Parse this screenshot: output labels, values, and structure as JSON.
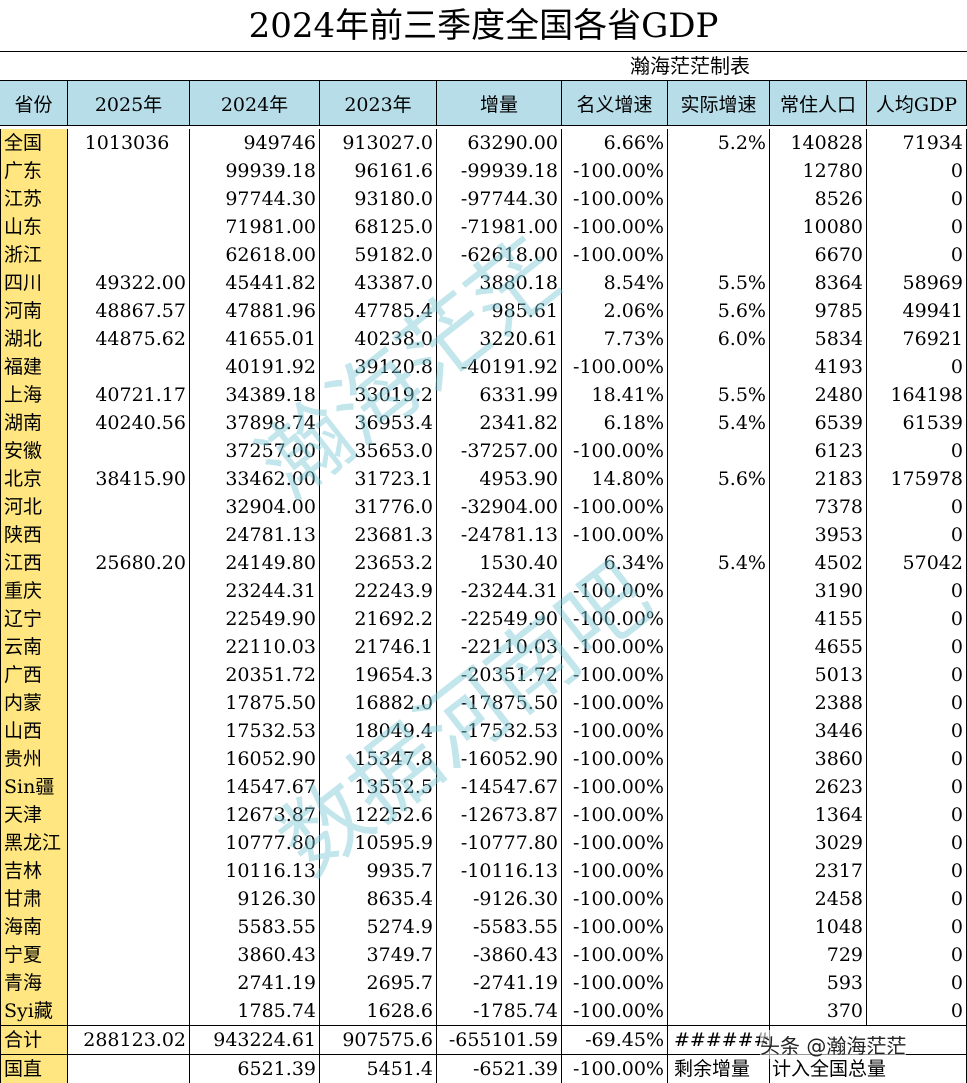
{
  "title": "2024年前三季度全国各省GDP",
  "subtitle": "瀚海茫茫制表",
  "headers": [
    "省份",
    "2025年",
    "2024年",
    "2023年",
    "增量",
    "名义增速",
    "实际增速",
    "常住人口",
    "人均GDP"
  ],
  "rows": [
    [
      "全国",
      "1013036",
      "949746",
      "913027.0",
      "63290.00",
      "6.66%",
      "5.2%",
      "140828",
      "71934"
    ],
    [
      "广东",
      "",
      "99939.18",
      "96161.6",
      "-99939.18",
      "-100.00%",
      "",
      "12780",
      "0"
    ],
    [
      "江苏",
      "",
      "97744.30",
      "93180.0",
      "-97744.30",
      "-100.00%",
      "",
      "8526",
      "0"
    ],
    [
      "山东",
      "",
      "71981.00",
      "68125.0",
      "-71981.00",
      "-100.00%",
      "",
      "10080",
      "0"
    ],
    [
      "浙江",
      "",
      "62618.00",
      "59182.0",
      "-62618.00",
      "-100.00%",
      "",
      "6670",
      "0"
    ],
    [
      "四川",
      "49322.00",
      "45441.82",
      "43387.0",
      "3880.18",
      "8.54%",
      "5.5%",
      "8364",
      "58969"
    ],
    [
      "河南",
      "48867.57",
      "47881.96",
      "47785.4",
      "985.61",
      "2.06%",
      "5.6%",
      "9785",
      "49941"
    ],
    [
      "湖北",
      "44875.62",
      "41655.01",
      "40238.0",
      "3220.61",
      "7.73%",
      "6.0%",
      "5834",
      "76921"
    ],
    [
      "福建",
      "",
      "40191.92",
      "39120.8",
      "-40191.92",
      "-100.00%",
      "",
      "4193",
      "0"
    ],
    [
      "上海",
      "40721.17",
      "34389.18",
      "33019.2",
      "6331.99",
      "18.41%",
      "5.5%",
      "2480",
      "164198"
    ],
    [
      "湖南",
      "40240.56",
      "37898.74",
      "36953.4",
      "2341.82",
      "6.18%",
      "5.4%",
      "6539",
      "61539"
    ],
    [
      "安徽",
      "",
      "37257.00",
      "35653.0",
      "-37257.00",
      "-100.00%",
      "",
      "6123",
      "0"
    ],
    [
      "北京",
      "38415.90",
      "33462.00",
      "31723.1",
      "4953.90",
      "14.80%",
      "5.6%",
      "2183",
      "175978"
    ],
    [
      "河北",
      "",
      "32904.00",
      "31776.0",
      "-32904.00",
      "-100.00%",
      "",
      "7378",
      "0"
    ],
    [
      "陕西",
      "",
      "24781.13",
      "23681.3",
      "-24781.13",
      "-100.00%",
      "",
      "3953",
      "0"
    ],
    [
      "江西",
      "25680.20",
      "24149.80",
      "23653.2",
      "1530.40",
      "6.34%",
      "5.4%",
      "4502",
      "57042"
    ],
    [
      "重庆",
      "",
      "23244.31",
      "22243.9",
      "-23244.31",
      "-100.00%",
      "",
      "3190",
      "0"
    ],
    [
      "辽宁",
      "",
      "22549.90",
      "21692.2",
      "-22549.90",
      "-100.00%",
      "",
      "4155",
      "0"
    ],
    [
      "云南",
      "",
      "22110.03",
      "21746.1",
      "-22110.03",
      "-100.00%",
      "",
      "4655",
      "0"
    ],
    [
      "广西",
      "",
      "20351.72",
      "19654.3",
      "-20351.72",
      "-100.00%",
      "",
      "5013",
      "0"
    ],
    [
      "内蒙",
      "",
      "17875.50",
      "16882.0",
      "-17875.50",
      "-100.00%",
      "",
      "2388",
      "0"
    ],
    [
      "山西",
      "",
      "17532.53",
      "18049.4",
      "-17532.53",
      "-100.00%",
      "",
      "3446",
      "0"
    ],
    [
      "贵州",
      "",
      "16052.90",
      "15347.8",
      "-16052.90",
      "-100.00%",
      "",
      "3860",
      "0"
    ],
    [
      "Sin疆",
      "",
      "14547.67",
      "13552.5",
      "-14547.67",
      "-100.00%",
      "",
      "2623",
      "0"
    ],
    [
      "天津",
      "",
      "12673.87",
      "12252.6",
      "-12673.87",
      "-100.00%",
      "",
      "1364",
      "0"
    ],
    [
      "黑龙江",
      "",
      "10777.80",
      "10595.9",
      "-10777.80",
      "-100.00%",
      "",
      "3029",
      "0"
    ],
    [
      "吉林",
      "",
      "10116.13",
      "9935.7",
      "-10116.13",
      "-100.00%",
      "",
      "2317",
      "0"
    ],
    [
      "甘肃",
      "",
      "9126.30",
      "8635.4",
      "-9126.30",
      "-100.00%",
      "",
      "2458",
      "0"
    ],
    [
      "海南",
      "",
      "5583.55",
      "5274.9",
      "-5583.55",
      "-100.00%",
      "",
      "1048",
      "0"
    ],
    [
      "宁夏",
      "",
      "3860.43",
      "3749.7",
      "-3860.43",
      "-100.00%",
      "",
      "729",
      "0"
    ],
    [
      "青海",
      "",
      "2741.19",
      "2695.7",
      "-2741.19",
      "-100.00%",
      "",
      "593",
      "0"
    ],
    [
      "Syi藏",
      "",
      "1785.74",
      "1628.6",
      "-1785.74",
      "-100.00%",
      "",
      "370",
      "0"
    ],
    [
      "合计",
      "288123.02",
      "943224.61",
      "907575.6",
      "-655101.59",
      "-69.45%",
      "#########",
      "",
      ""
    ],
    [
      "国直",
      "",
      "6521.39",
      "5451.4",
      "-6521.39",
      "-100.00%",
      "剩余增量",
      "计入全国总量",
      ""
    ]
  ],
  "watermark_text": "瀚海茫茫 数据河南吧",
  "signature": "头条 @瀚海茫茫",
  "colors": {
    "header_bg": "#b7dde8",
    "province_bg": "#ffe680",
    "watermark": "#78c8d2"
  }
}
